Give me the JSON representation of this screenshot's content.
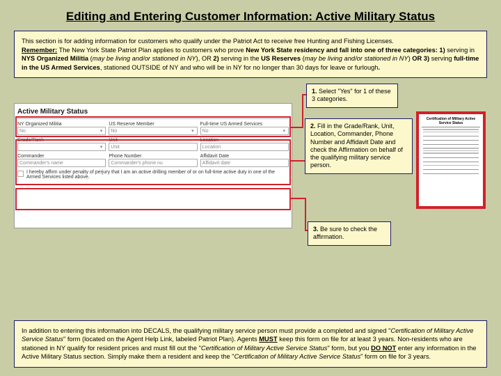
{
  "title": "Editing and Entering Customer Information: Active Military Status",
  "intro": {
    "line1": "This section is for adding information for customers who qualify under the Patriot Act to receive free Hunting and Fishing Licenses.",
    "remember_label": "Remember:",
    "remember_body1": " The New York State Patriot Plan applies to customers who prove ",
    "remember_bold1": "New York State residency and fall into one of three categories: 1)",
    "remember_body2": " serving in ",
    "remember_bold2": "NYS Organized Militia",
    "remember_paren1": " (",
    "remember_italic1": "may be living and/or stationed in NY",
    "remember_body3": "), OR ",
    "remember_bold3": "2)",
    "remember_body4": " serving in the ",
    "remember_bold4": "US Reserves",
    "remember_paren2": " (",
    "remember_italic2": "may be living and/or stationed in NY",
    "remember_body5": ") ",
    "remember_bold5": "OR  3)",
    "remember_body6": " serving ",
    "remember_bold6": "full-time in the US Armed Services",
    "remember_body7": ", stationed OUTSIDE of NY and who will be in NY for no longer than 30 days for leave or furlough",
    "remember_period": "."
  },
  "form": {
    "header": "Active Military Status",
    "lbl_militia": "NY Organized Militia",
    "lbl_reserve": "US Reserve Member",
    "lbl_armed": "Full-time US Armed Services",
    "opt_no": "No",
    "lbl_grade": "Grade/Rank",
    "lbl_unit": "Unit",
    "lbl_location": "Location",
    "ph_unit": "Unit",
    "ph_location": "Location",
    "lbl_cmdr": "Commander",
    "lbl_phone": "Phone Number",
    "lbl_affdate": "Affidavit Date",
    "ph_cmdr": "Commander's name",
    "ph_phone": "Commander's phone nu",
    "ph_affdate": "Affidavit date",
    "affirm": "I hereby affirm under penalty of perjury that I am an active drilling member of or on full-time active duty in one of the Armed Services listed above."
  },
  "callouts": {
    "c1_n": "1.",
    "c1": " Select \"Yes\" for 1 of these 3 categories.",
    "c2_n": "2.",
    "c2": " Fill in the Grade/Rank, Unit, Location, Commander, Phone Number and Affidavit Date and check the Affirmation on behalf of the qualifying military service person.",
    "c3_n": "3.",
    "c3": " Be sure to check the affirmation."
  },
  "docthumb": {
    "title": "Certification of Military Active Service Status"
  },
  "footer": {
    "t1": "In addition to entering this information into DECALS, the qualifying military service person must provide a completed and signed \"",
    "i1": "Certification of Military Active Service Status",
    "t2": "\" form (located on the Agent Help Link, labeled Patriot Plan). Agents ",
    "bu1": "MUST",
    "t3": " keep this form on file for at least 3 years. Non-residents who are stationed in NY qualify for resident prices and must fill out the \"",
    "i2": "Certification of Military Active Service Status",
    "t4": "\" form, but you ",
    "bu2": "DO NOT",
    "t5": " enter any information in the Active Military Status section. Simply make them a resident and keep the \"",
    "i3": "Certification of Military Active Service Status",
    "t6": "\" form on file for 3 years."
  }
}
